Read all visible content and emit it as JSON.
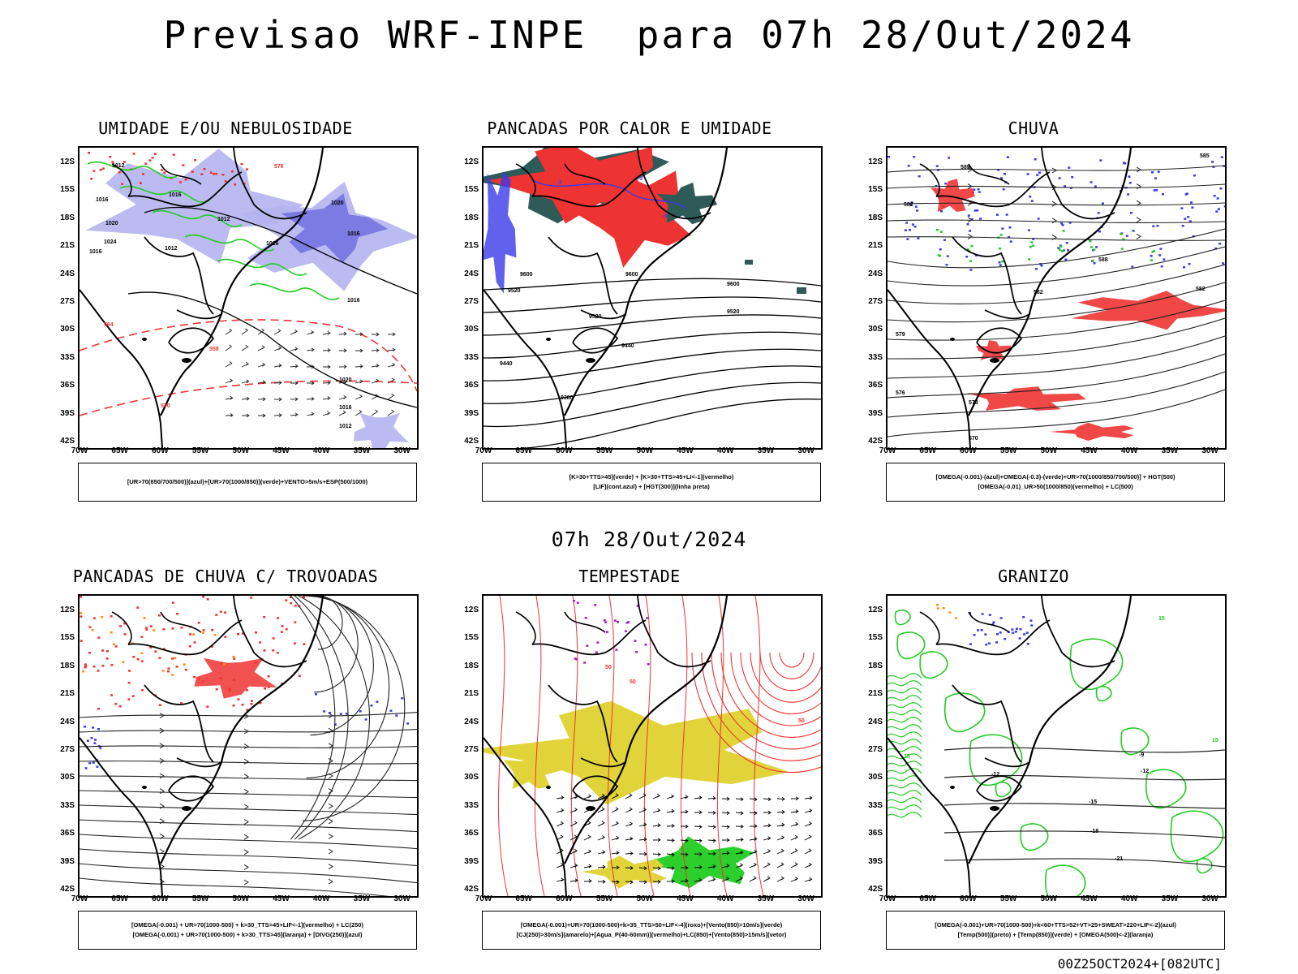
{
  "main_title": "Previsao WRF-INPE  para 07h 28/Out/2024",
  "middle_label": "07h 28/Out/2024",
  "footer": "00Z25OCT2024+[082UTC]",
  "axes": {
    "lat_labels": [
      "12S",
      "15S",
      "18S",
      "21S",
      "24S",
      "27S",
      "30S",
      "33S",
      "36S",
      "39S",
      "42S"
    ],
    "lon_labels": [
      "70W",
      "65W",
      "60W",
      "55W",
      "50W",
      "45W",
      "40W",
      "35W",
      "30W"
    ]
  },
  "colors": {
    "blue": "#3a3ae8",
    "lightblue": "#b4b4f0",
    "midblue": "#7070e0",
    "green": "#22cc22",
    "red": "#ee3333",
    "darkteal": "#2e5a57",
    "yellow": "#e0d43a",
    "purple": "#a020c0",
    "orange": "#ff8c1a",
    "black": "#000000"
  },
  "panels": [
    {
      "title": "UMIDADE E/OU NEBULOSIDADE",
      "legend": [
        "[UR>70(850/700/500)](azul)+[UR>70(1000/850)](verde)+VENTO>5m/s+ESP(500/1000)"
      ],
      "labels": [
        "1012",
        "1016",
        "1020",
        "1024",
        "1016",
        "1016",
        "1012",
        "1012",
        "1016",
        "1020",
        "1016",
        "1016",
        "1020",
        "1016",
        "1012",
        "564",
        "558",
        "570",
        "576"
      ]
    },
    {
      "title": "PANCADAS POR CALOR E UMIDADE",
      "legend": [
        "[K>30+TTS>45](verde) + [K>30+TTS>45+LI<-1](vermelho)",
        "[LIF](cont.azul) + [HGT(300)](linha preta)"
      ],
      "labels": [
        "9600",
        "9520",
        "9600",
        "9520",
        "9440",
        "9440",
        "9380",
        "9600",
        "9520",
        "-3",
        "-3",
        "-3"
      ]
    },
    {
      "title": "CHUVA",
      "legend": [
        "[OMEGA(-0.001)-(azul)+OMEGA(-0.3)-(verde)+UR>70(1000/850/700/500)] + HGT(500)",
        "[OMEGA(-0.01)_UR>50(1000/850)(vermelho) + LC(500)"
      ],
      "labels": [
        "585",
        "585",
        "582",
        "582",
        "579",
        "576",
        "573",
        "570",
        "588",
        "582"
      ]
    },
    {
      "title": "PANCADAS DE CHUVA C/ TROVOADAS",
      "legend": [
        "[OMEGA(-0.001) + UR>70(1000-500) + k>30_TTS>45+LIF<-1](vermelho) + LC(250)",
        "[OMEGA(-0.001) + UR>70(1000-500) + k>30_TTS>45](laranja) + [DIVG(250)](azul)"
      ],
      "labels": []
    },
    {
      "title": "TEMPESTADE",
      "legend": [
        "[OMEGA(-0.001)+UR>70(1000-500)+k>35_TTS>50+LIF<-4](roxo)+[Vento(850)>10m/s](verde)",
        "[CJ(250)>30m/s](amarelo)+[Agua_P(40-60mm)](vermelho)+LC(850)+[Vento(850)>15m/s](vetor)"
      ],
      "labels": [
        "50",
        "50",
        "50"
      ]
    },
    {
      "title": "GRANIZO",
      "legend": [
        "[OMEGA(-0.001)+UR>70(1000-500)+k<60+TTS>52+VT>25+SWEAT>220+LIF<-2](azul)",
        "[Temp(500)](preto) + [Temp(850)](verde) + [OMEGA(500)<-2](laranja)"
      ],
      "labels": [
        "-9",
        "-12",
        "-12",
        "-15",
        "-18",
        "-21",
        "15",
        "15",
        "15"
      ]
    }
  ]
}
